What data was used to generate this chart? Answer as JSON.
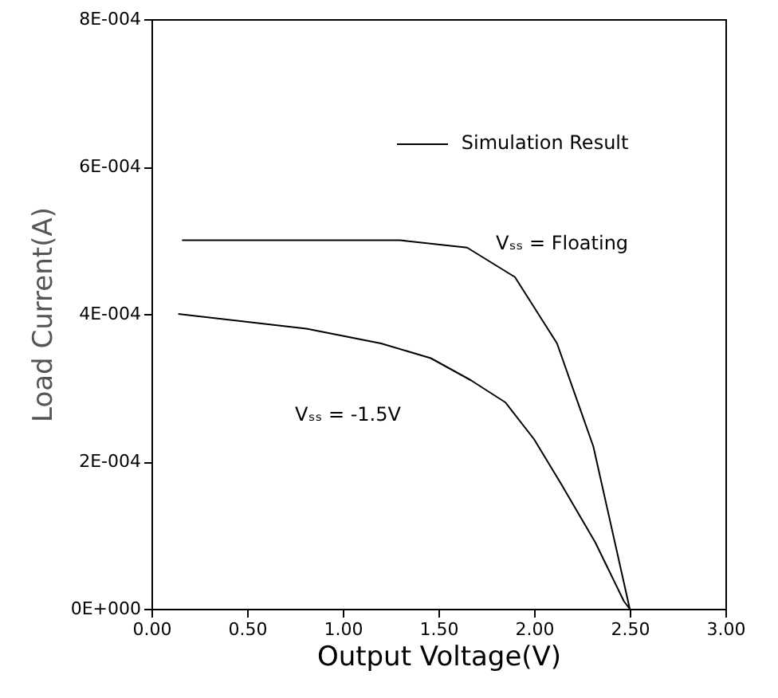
{
  "chart_data": {
    "type": "line",
    "xlabel": "Output Voltage(V)",
    "ylabel": "Load Current(A)",
    "xlim": [
      0,
      3
    ],
    "ylim": [
      0,
      0.0008
    ],
    "xticks": [
      {
        "value": 0,
        "label": "0.00"
      },
      {
        "value": 0.5,
        "label": "0.50"
      },
      {
        "value": 1,
        "label": "1.00"
      },
      {
        "value": 1.5,
        "label": "1.50"
      },
      {
        "value": 2,
        "label": "2.00"
      },
      {
        "value": 2.5,
        "label": "2.50"
      },
      {
        "value": 3,
        "label": "3.00"
      }
    ],
    "yticks": [
      {
        "value": 0,
        "label": "0E+000"
      },
      {
        "value": 0.0002,
        "label": "2E-004"
      },
      {
        "value": 0.0004,
        "label": "4E-004"
      },
      {
        "value": 0.0006,
        "label": "6E-004"
      },
      {
        "value": 0.0008,
        "label": "8E-004"
      }
    ],
    "grid": false,
    "marker": "none",
    "line_style": "solid",
    "annotations": [
      "Simulation Result"
    ],
    "series": [
      {
        "name": "Vₛₛ = Floating",
        "color": "#000000",
        "x": [
          0.16,
          0.8,
          1.3,
          1.65,
          1.9,
          2.12,
          2.31,
          2.5
        ],
        "values": [
          0.0005,
          0.0005,
          0.0005,
          0.00049,
          0.00045,
          0.00036,
          0.00022,
          0
        ]
      },
      {
        "name": "Vₛₛ = -1.5V",
        "color": "#000000",
        "x": [
          0.14,
          0.81,
          1.2,
          1.46,
          1.67,
          1.85,
          2.0,
          2.14,
          2.32,
          2.47,
          2.5
        ],
        "values": [
          0.0004,
          0.00038,
          0.00036,
          0.00034,
          0.00031,
          0.00028,
          0.00023,
          0.00017,
          9e-05,
          1e-05,
          0
        ]
      }
    ]
  }
}
